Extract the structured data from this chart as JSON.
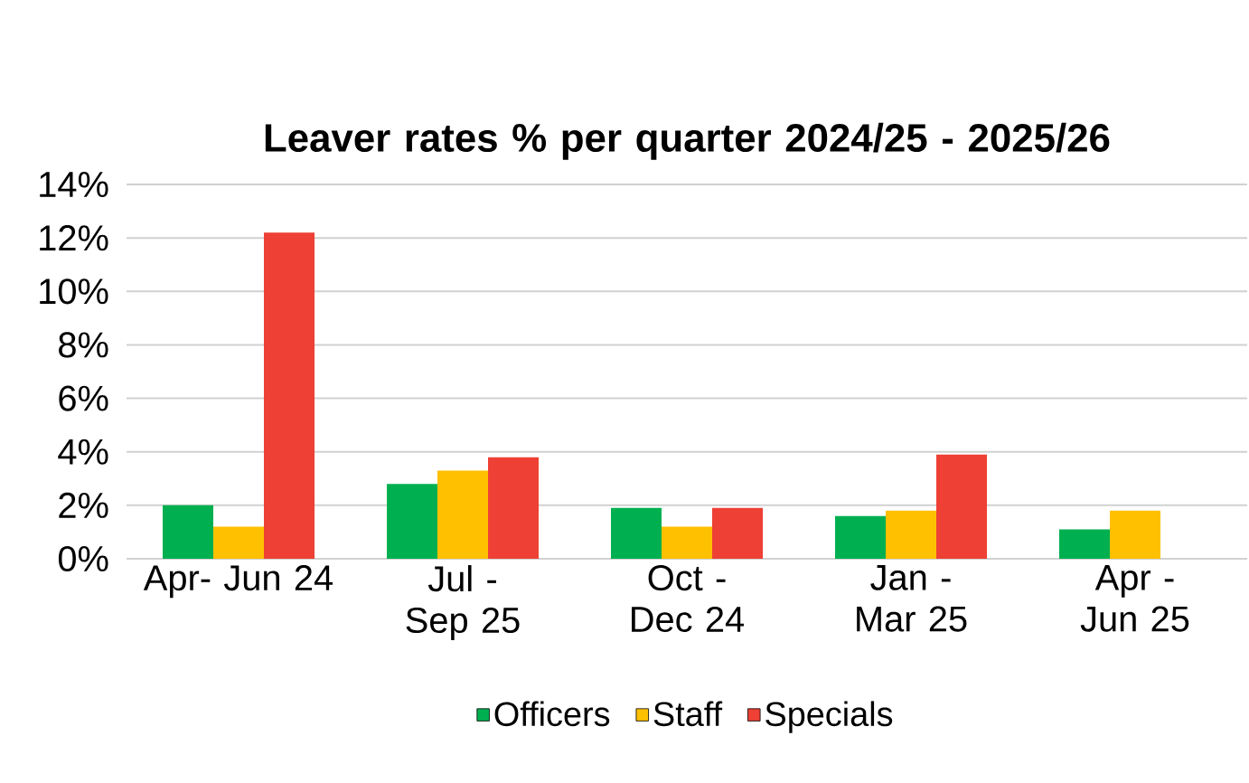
{
  "chart_data": {
    "type": "bar",
    "title": "Leaver rates % per quarter 2024/25 - 2025/26",
    "categories": [
      "Apr- Jun 24",
      "Jul - Sep 25",
      "Oct - Dec 24",
      "Jan - Mar 25",
      "Apr - Jun 25"
    ],
    "series": [
      {
        "name": "Officers",
        "color": "#00b050",
        "values": [
          2.0,
          2.8,
          1.9,
          1.6,
          1.1
        ]
      },
      {
        "name": "Staff",
        "color": "#ffc000",
        "values": [
          1.2,
          3.3,
          1.2,
          1.8,
          1.8
        ]
      },
      {
        "name": "Specials",
        "color": "#ee4035",
        "values": [
          12.2,
          3.8,
          1.9,
          3.9,
          null
        ]
      }
    ],
    "ylim": [
      0,
      14
    ],
    "yticks": [
      {
        "value": 0,
        "label": "0%"
      },
      {
        "value": 2,
        "label": "2%"
      },
      {
        "value": 4,
        "label": "4%"
      },
      {
        "value": 6,
        "label": "6%"
      },
      {
        "value": 8,
        "label": "8%"
      },
      {
        "value": 10,
        "label": "10%"
      },
      {
        "value": 12,
        "label": "12%"
      },
      {
        "value": 14,
        "label": "14%"
      }
    ],
    "grid": "y",
    "legend": "bottom"
  }
}
